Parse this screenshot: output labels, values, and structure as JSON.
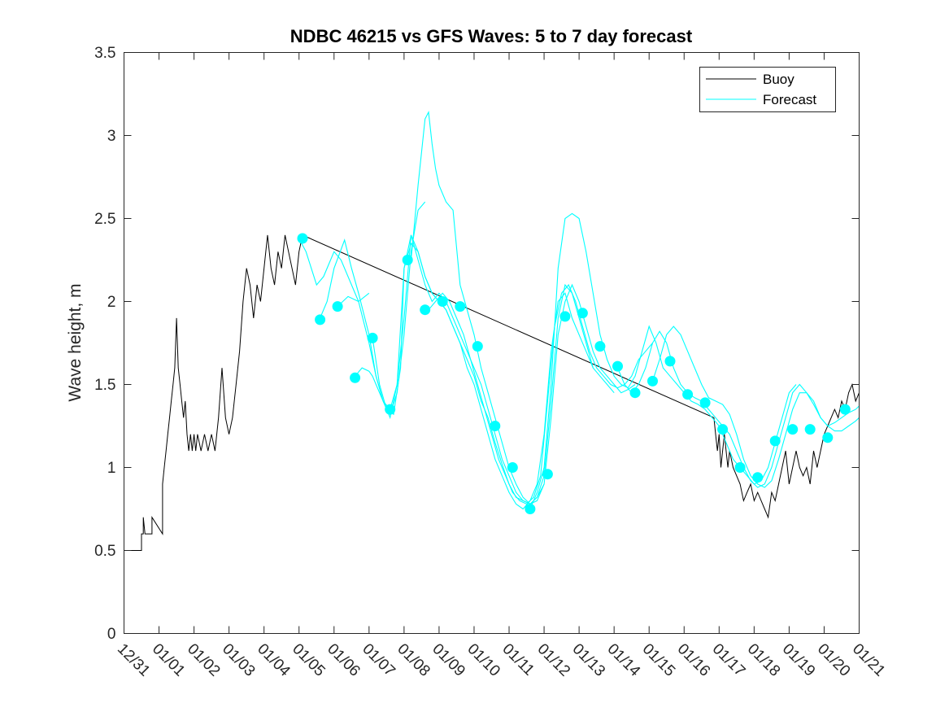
{
  "chart_data": {
    "type": "line",
    "title": "NDBC 46215 vs GFS Waves: 5 to 7 day forecast",
    "xlabel": "",
    "ylabel": "Wave height, m",
    "xlim": [
      0,
      21
    ],
    "ylim": [
      0,
      3.5
    ],
    "x_ticks": [
      0,
      1,
      2,
      3,
      4,
      5,
      6,
      7,
      8,
      9,
      10,
      11,
      12,
      13,
      14,
      15,
      16,
      17,
      18,
      19,
      20,
      21
    ],
    "x_tick_labels": [
      "12/31",
      "01/01",
      "01/02",
      "01/03",
      "01/04",
      "01/05",
      "01/06",
      "01/07",
      "01/08",
      "01/09",
      "01/10",
      "01/11",
      "01/12",
      "01/13",
      "01/14",
      "01/15",
      "01/16",
      "01/17",
      "01/18",
      "01/19",
      "01/20",
      "01/21"
    ],
    "y_ticks": [
      0,
      0.5,
      1,
      1.5,
      2,
      2.5,
      3,
      3.5
    ],
    "y_tick_labels": [
      "0",
      "0.5",
      "1",
      "1.5",
      "2",
      "2.5",
      "3",
      "3.5"
    ],
    "grid": false,
    "legend": {
      "position": "top-right",
      "entries": [
        "Buoy",
        "Forecast"
      ]
    },
    "colors": {
      "buoy": "#000000",
      "forecast": "#00ffff"
    },
    "series": [
      {
        "name": "Buoy",
        "color": "#000000",
        "x": [
          0,
          0.5,
          0.5,
          0.55,
          0.55,
          0.6,
          0.6,
          0.8,
          0.8,
          1.1,
          1.1,
          1.15,
          1.2,
          1.25,
          1.3,
          1.35,
          1.4,
          1.45,
          1.5,
          1.55,
          1.6,
          1.65,
          1.7,
          1.75,
          1.8,
          1.85,
          1.9,
          1.95,
          2.0,
          2.05,
          2.1,
          2.2,
          2.3,
          2.4,
          2.5,
          2.6,
          2.7,
          2.8,
          2.9,
          3.0,
          3.1,
          3.2,
          3.3,
          3.4,
          3.5,
          3.6,
          3.7,
          3.8,
          3.9,
          4.0,
          4.1,
          4.2,
          4.3,
          4.4,
          4.5,
          4.6,
          4.7,
          4.8,
          4.9,
          5.0,
          5.1,
          16.85,
          16.9,
          16.95,
          17.0,
          17.05,
          17.1,
          17.15,
          17.2,
          17.25,
          17.3,
          17.4,
          17.5,
          17.6,
          17.7,
          17.8,
          17.9,
          18.0,
          18.1,
          18.2,
          18.3,
          18.4,
          18.5,
          18.6,
          18.7,
          18.8,
          18.9,
          19.0,
          19.1,
          19.2,
          19.3,
          19.4,
          19.5,
          19.6,
          19.7,
          19.8,
          19.9,
          20.0,
          20.1,
          20.2,
          20.3,
          20.4,
          20.5,
          20.6,
          20.7,
          20.8,
          20.9,
          21.0
        ],
        "values": [
          0.5,
          0.5,
          0.6,
          0.6,
          0.7,
          0.6,
          0.6,
          0.6,
          0.7,
          0.6,
          0.9,
          1.0,
          1.1,
          1.2,
          1.3,
          1.4,
          1.5,
          1.6,
          1.9,
          1.6,
          1.5,
          1.4,
          1.3,
          1.4,
          1.2,
          1.1,
          1.2,
          1.1,
          1.2,
          1.1,
          1.2,
          1.1,
          1.2,
          1.1,
          1.2,
          1.1,
          1.3,
          1.6,
          1.3,
          1.2,
          1.3,
          1.5,
          1.7,
          2.0,
          2.2,
          2.1,
          1.9,
          2.1,
          2.0,
          2.2,
          2.4,
          2.2,
          2.1,
          2.3,
          2.2,
          2.4,
          2.3,
          2.2,
          2.1,
          2.3,
          2.4,
          1.3,
          1.2,
          1.1,
          1.2,
          1.0,
          1.1,
          1.2,
          1.1,
          1.0,
          1.1,
          1.0,
          0.95,
          0.9,
          0.8,
          0.85,
          0.9,
          0.8,
          0.85,
          0.8,
          0.75,
          0.7,
          0.85,
          0.8,
          0.9,
          1.0,
          1.1,
          0.9,
          1.0,
          1.1,
          1.0,
          0.95,
          1.0,
          0.9,
          1.1,
          1.0,
          1.1,
          1.2,
          1.25,
          1.3,
          1.35,
          1.3,
          1.4,
          1.35,
          1.45,
          1.5,
          1.4,
          1.45
        ]
      },
      {
        "name": "Forecast",
        "color": "#00ffff",
        "runs": [
          {
            "x": [
              5.0,
              5.2,
              5.5,
              5.7,
              6.0,
              6.2,
              6.5,
              6.7,
              7.0
            ],
            "values": [
              2.38,
              2.3,
              2.1,
              2.15,
              2.3,
              2.25,
              2.1,
              2.0,
              2.05
            ]
          },
          {
            "x": [
              5.6,
              5.8,
              6.0,
              6.3,
              6.5,
              6.7,
              7.0,
              7.2,
              7.4,
              7.6
            ],
            "values": [
              1.9,
              2.0,
              2.2,
              2.37,
              2.2,
              2.05,
              1.8,
              1.55,
              1.4,
              1.35
            ]
          },
          {
            "x": [
              6.1,
              6.4,
              6.7,
              7.0,
              7.2,
              7.4,
              7.6,
              7.8,
              8.0,
              8.2,
              8.4,
              8.6
            ],
            "values": [
              1.97,
              2.03,
              2.0,
              1.75,
              1.55,
              1.4,
              1.32,
              1.45,
              1.8,
              2.3,
              2.55,
              2.6
            ]
          },
          {
            "x": [
              6.6,
              6.8,
              7.0,
              7.1,
              7.2,
              7.4,
              7.6,
              7.8,
              8.0,
              8.2,
              8.4,
              8.6,
              8.8,
              9.0,
              9.2,
              9.4,
              9.6,
              9.8,
              10.0,
              10.2,
              10.4,
              10.6,
              10.8,
              11.0,
              11.2,
              11.4,
              11.6,
              11.8,
              12.0
            ],
            "values": [
              1.55,
              1.6,
              1.58,
              1.55,
              1.5,
              1.4,
              1.3,
              1.5,
              2.2,
              2.35,
              2.3,
              2.15,
              2.05,
              2.0,
              1.95,
              1.85,
              1.75,
              1.65,
              1.55,
              1.4,
              1.3,
              1.15,
              1.02,
              0.9,
              0.82,
              0.8,
              0.78,
              0.82,
              0.9
            ]
          },
          {
            "x": [
              7.1,
              7.3,
              7.5,
              7.7,
              7.9,
              8.0,
              8.2,
              8.4,
              8.6,
              8.8,
              9.0,
              9.2,
              9.4,
              9.6,
              9.8,
              10.0,
              10.2,
              10.4,
              10.6,
              10.8,
              11.0,
              11.2,
              11.4,
              11.6,
              11.8,
              12.0,
              12.2,
              12.4,
              12.6,
              12.8,
              13.0,
              13.2,
              13.4
            ],
            "values": [
              1.78,
              1.5,
              1.35,
              1.32,
              1.6,
              2.2,
              2.4,
              2.25,
              2.1,
              2.0,
              2.05,
              2.0,
              1.9,
              1.8,
              1.7,
              1.6,
              1.5,
              1.35,
              1.2,
              1.05,
              0.95,
              0.85,
              0.8,
              0.78,
              0.82,
              0.95,
              1.4,
              1.9,
              2.1,
              2.05,
              1.9,
              1.75,
              1.6
            ]
          },
          {
            "x": [
              7.6,
              7.8,
              8.0,
              8.2,
              8.4,
              8.6,
              8.8,
              9.0,
              9.2,
              9.4,
              9.6,
              9.8,
              10.0,
              10.2,
              10.4,
              10.6,
              10.8,
              11.0,
              11.2,
              11.4,
              11.6,
              11.8,
              12.0,
              12.2,
              12.4,
              12.6,
              12.8,
              13.0,
              13.2,
              13.4,
              13.6,
              13.8,
              14.0
            ],
            "values": [
              1.35,
              1.5,
              1.9,
              2.4,
              2.3,
              2.15,
              2.05,
              2.0,
              1.95,
              1.85,
              1.75,
              1.6,
              1.5,
              1.35,
              1.2,
              1.05,
              0.95,
              0.85,
              0.78,
              0.75,
              0.8,
              0.9,
              1.2,
              1.7,
              2.0,
              2.05,
              1.9,
              1.8,
              1.7,
              1.6,
              1.55,
              1.5,
              1.45
            ]
          },
          {
            "x": [
              8.2,
              8.4,
              8.5,
              8.6,
              8.7,
              8.8,
              8.9,
              9.0,
              9.2,
              9.4,
              9.6,
              9.8,
              10.0,
              10.2,
              10.4,
              10.6,
              10.8,
              11.0,
              11.2,
              11.4,
              11.6,
              11.8,
              12.0,
              12.2,
              12.4,
              12.6,
              12.8,
              13.0,
              13.2,
              13.4,
              13.6,
              13.8,
              14.0,
              14.2,
              14.4,
              14.6
            ],
            "values": [
              2.25,
              2.7,
              2.9,
              3.1,
              3.14,
              2.95,
              2.8,
              2.7,
              2.6,
              2.55,
              2.1,
              1.95,
              1.8,
              1.6,
              1.45,
              1.3,
              1.15,
              1.0,
              0.9,
              0.82,
              0.78,
              0.8,
              0.9,
              1.3,
              1.8,
              2.0,
              2.1,
              2.0,
              1.85,
              1.7,
              1.6,
              1.55,
              1.5,
              1.45,
              1.47,
              1.5
            ]
          },
          {
            "x": [
              8.7,
              8.9,
              9.1,
              9.3,
              9.5,
              9.7,
              9.9,
              10.1,
              10.3,
              10.5,
              10.7,
              10.9,
              11.1,
              11.3,
              11.5,
              11.7,
              11.9,
              12.1,
              12.3,
              12.5,
              12.7,
              12.9,
              13.1,
              13.3,
              13.5,
              13.7,
              13.9,
              14.1,
              14.3,
              14.5,
              14.7,
              14.9,
              15.1
            ],
            "values": [
              1.95,
              2.0,
              2.05,
              2.0,
              1.9,
              1.8,
              1.65,
              1.5,
              1.35,
              1.2,
              1.05,
              0.95,
              0.85,
              0.8,
              0.78,
              0.82,
              0.95,
              1.4,
              1.85,
              2.05,
              2.1,
              2.0,
              1.85,
              1.7,
              1.6,
              1.55,
              1.5,
              1.48,
              1.5,
              1.55,
              1.65,
              1.7,
              1.75
            ]
          },
          {
            "x": [
              11.6,
              11.8,
              12.0,
              12.2,
              12.4,
              12.6,
              12.8,
              13.0,
              13.2,
              13.4,
              13.6,
              13.8,
              14.0,
              14.2,
              14.4,
              14.6,
              14.8,
              15.0,
              15.2,
              15.4,
              15.6,
              15.8,
              16.0,
              16.2,
              16.4,
              16.6,
              16.8,
              17.0,
              17.2,
              17.4,
              17.6,
              17.8,
              18.0,
              18.2,
              18.4,
              18.6,
              18.8,
              19.0,
              19.2
            ],
            "values": [
              0.75,
              0.85,
              1.0,
              1.5,
              2.2,
              2.5,
              2.53,
              2.5,
              2.3,
              2.05,
              1.8,
              1.65,
              1.55,
              1.5,
              1.48,
              1.55,
              1.7,
              1.85,
              1.75,
              1.6,
              1.55,
              1.5,
              1.45,
              1.4,
              1.38,
              1.35,
              1.3,
              1.25,
              1.15,
              1.05,
              1.0,
              0.95,
              0.9,
              0.92,
              1.0,
              1.15,
              1.3,
              1.45,
              1.5
            ]
          },
          {
            "x": [
              14.1,
              14.3,
              14.5,
              14.7,
              14.9,
              15.1,
              15.3,
              15.5,
              15.7,
              15.9,
              16.1,
              16.3,
              16.5,
              16.7,
              16.9,
              17.1,
              17.3,
              17.5,
              17.7,
              17.9,
              18.1,
              18.3,
              18.5,
              18.7,
              18.9,
              19.1,
              19.3,
              19.5,
              19.7,
              19.9,
              20.1,
              20.3,
              20.5,
              20.7,
              20.9,
              21.0
            ],
            "values": [
              1.6,
              1.5,
              1.45,
              1.5,
              1.6,
              1.75,
              1.82,
              1.75,
              1.6,
              1.5,
              1.45,
              1.42,
              1.4,
              1.35,
              1.3,
              1.25,
              1.2,
              1.1,
              1.0,
              0.92,
              0.88,
              0.9,
              1.0,
              1.15,
              1.3,
              1.45,
              1.5,
              1.45,
              1.38,
              1.3,
              1.25,
              1.22,
              1.22,
              1.25,
              1.28,
              1.3
            ]
          },
          {
            "x": [
              15.1,
              15.3,
              15.5,
              15.7,
              15.9,
              16.1,
              16.3,
              16.5,
              16.7,
              16.9,
              17.1,
              17.3,
              17.5,
              17.7,
              17.9,
              18.1,
              18.3,
              18.5,
              18.7,
              18.9,
              19.1,
              19.3,
              19.5,
              19.7,
              19.9,
              20.1,
              20.3,
              20.5,
              20.7,
              20.9,
              21.0
            ],
            "values": [
              1.52,
              1.65,
              1.8,
              1.85,
              1.8,
              1.7,
              1.6,
              1.5,
              1.42,
              1.4,
              1.38,
              1.32,
              1.2,
              1.05,
              0.95,
              0.9,
              0.88,
              0.92,
              1.05,
              1.2,
              1.35,
              1.45,
              1.45,
              1.4,
              1.3,
              1.25,
              1.27,
              1.3,
              1.33,
              1.35,
              1.37
            ]
          }
        ]
      }
    ],
    "forecast_markers": {
      "x": [
        5.1,
        5.6,
        6.1,
        6.6,
        7.1,
        7.6,
        8.1,
        8.6,
        9.1,
        9.6,
        10.1,
        10.6,
        11.1,
        11.6,
        12.1,
        12.6,
        13.1,
        13.6,
        14.1,
        14.6,
        15.1,
        15.6,
        16.1,
        16.6,
        17.1,
        17.6,
        18.1,
        18.6,
        19.1,
        19.6,
        20.1,
        20.6
      ],
      "values": [
        2.38,
        1.89,
        1.97,
        1.54,
        1.78,
        1.35,
        2.25,
        1.95,
        2.0,
        1.97,
        1.73,
        1.25,
        1.0,
        0.75,
        0.96,
        1.91,
        1.93,
        1.73,
        1.61,
        1.45,
        1.52,
        1.64,
        1.44,
        1.39,
        1.23,
        1.0,
        0.94,
        1.16,
        1.23,
        1.23,
        1.18,
        1.35
      ]
    }
  }
}
